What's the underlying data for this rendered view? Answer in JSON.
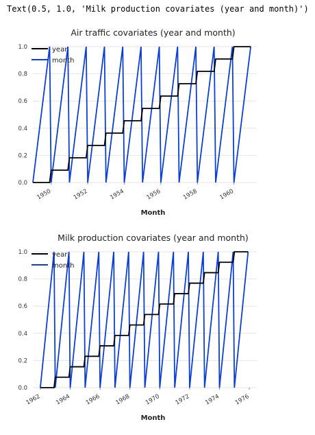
{
  "output_text": "Text(0.5, 1.0, 'Milk production covariates (year and month)')",
  "colors": {
    "year": "#000000",
    "month": "#0a3fd6",
    "grid": "#e6e6e6"
  },
  "chart_data": [
    {
      "type": "line",
      "title": "Air traffic covariates (year and month)",
      "xlabel": "Month",
      "ylabel": "",
      "ylim": [
        0,
        1
      ],
      "yticks": [
        "0.0",
        "0.2",
        "0.4",
        "0.6",
        "0.8",
        "1.0"
      ],
      "xticks": [
        "1950",
        "1952",
        "1954",
        "1956",
        "1958",
        "1960"
      ],
      "x_range": [
        "1949-01",
        "1960-12"
      ],
      "series": [
        {
          "name": "year",
          "start_year": 1949,
          "end_year": 1960,
          "form": "step_per_year",
          "values": [
            0.0,
            0.0909,
            0.1818,
            0.2727,
            0.3636,
            0.4545,
            0.5455,
            0.6364,
            0.7273,
            0.8182,
            0.9091,
            1.0
          ]
        },
        {
          "name": "month",
          "start_year": 1949,
          "end_year": 1960,
          "form": "ramp_0_to_1_per_year",
          "values_per_year": [
            0.0,
            0.0909,
            0.1818,
            0.2727,
            0.3636,
            0.4545,
            0.5455,
            0.6364,
            0.7273,
            0.8182,
            0.9091,
            1.0
          ]
        }
      ],
      "legend": {
        "placement": "upper-left",
        "entries": [
          "year",
          "month"
        ]
      },
      "grid": true
    },
    {
      "type": "line",
      "title": "Milk production covariates (year and month)",
      "xlabel": "Month",
      "ylabel": "",
      "ylim": [
        0,
        1
      ],
      "yticks": [
        "0.0",
        "0.2",
        "0.4",
        "0.6",
        "0.8",
        "1.0"
      ],
      "xticks": [
        "1962",
        "1964",
        "1966",
        "1968",
        "1970",
        "1972",
        "1974",
        "1976"
      ],
      "x_range": [
        "1962-01",
        "1975-12"
      ],
      "series": [
        {
          "name": "year",
          "start_year": 1962,
          "end_year": 1975,
          "form": "step_per_year",
          "values": [
            0.0,
            0.0769,
            0.1538,
            0.2308,
            0.3077,
            0.3846,
            0.4615,
            0.5385,
            0.6154,
            0.6923,
            0.7692,
            0.8462,
            0.9231,
            1.0
          ]
        },
        {
          "name": "month",
          "start_year": 1962,
          "end_year": 1975,
          "form": "ramp_0_to_1_per_year",
          "values_per_year": [
            0.0,
            0.0909,
            0.1818,
            0.2727,
            0.3636,
            0.4545,
            0.5455,
            0.6364,
            0.7273,
            0.8182,
            0.9091,
            1.0
          ]
        }
      ],
      "legend": {
        "placement": "upper-left",
        "entries": [
          "year",
          "month"
        ]
      },
      "grid": true
    }
  ]
}
